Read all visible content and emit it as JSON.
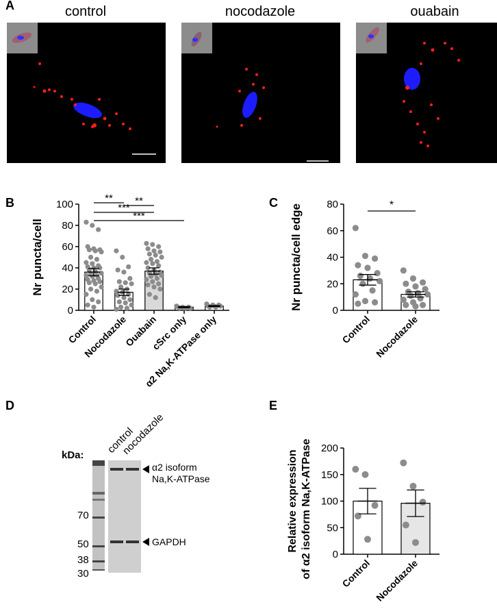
{
  "panels": {
    "A": {
      "label": "A",
      "images": [
        {
          "title": "control"
        },
        {
          "title": "nocodazole"
        },
        {
          "title": "ouabain"
        }
      ]
    },
    "B": {
      "label": "B"
    },
    "C": {
      "label": "C"
    },
    "D": {
      "label": "D",
      "kda_label": "kDa:",
      "lanes": [
        "control",
        "nocodazole"
      ],
      "markers": [
        "70",
        "50",
        "38",
        "30"
      ],
      "band_labels": [
        "α2 isoform",
        "Na,K-ATPase",
        "GAPDH"
      ]
    },
    "E": {
      "label": "E"
    }
  },
  "chart_data": [
    {
      "panel": "B",
      "type": "bar",
      "ylabel": "Nr puncta/cell",
      "ylim": [
        0,
        100
      ],
      "yticks": [
        0,
        20,
        40,
        60,
        80,
        100
      ],
      "categories": [
        "Control",
        "Nocodazole",
        "Ouabain",
        "cSrc only",
        "α2 Na,K-ATPase only"
      ],
      "values": [
        36,
        17,
        37,
        3,
        4
      ],
      "sem": [
        3.5,
        3,
        3,
        0.5,
        0.5
      ],
      "bar_colors": [
        "#ffffff",
        "#ffffff",
        "#d9d9d9",
        "#ffffff",
        "#ffffff"
      ],
      "points": [
        [
          83,
          80,
          76,
          60,
          58,
          57,
          57,
          56,
          55,
          50,
          48,
          45,
          44,
          42,
          41,
          40,
          40,
          38,
          37,
          35,
          34,
          33,
          33,
          32,
          30,
          29,
          28,
          27,
          26,
          25,
          22,
          20,
          18,
          15,
          10,
          8,
          5,
          3
        ],
        [
          56,
          50,
          41,
          38,
          36,
          30,
          27,
          26,
          25,
          22,
          20,
          18,
          17,
          15,
          14,
          12,
          10,
          8,
          7,
          5,
          3,
          2,
          1
        ],
        [
          63,
          62,
          60,
          58,
          56,
          55,
          53,
          52,
          50,
          48,
          46,
          45,
          44,
          42,
          40,
          38,
          36,
          35,
          34,
          33,
          32,
          30,
          29,
          27,
          25,
          24,
          22,
          20,
          15,
          12
        ],
        [
          4,
          3,
          3,
          3,
          2,
          2,
          2,
          2
        ],
        [
          6,
          5,
          5,
          4,
          4,
          4,
          3,
          3
        ]
      ],
      "significance": [
        {
          "label": "**"
        },
        {
          "label": "**"
        },
        {
          "label": "***"
        },
        {
          "label": "***"
        }
      ]
    },
    {
      "panel": "C",
      "type": "bar",
      "ylabel": "Nr puncta/cell edge",
      "ylim": [
        0,
        80
      ],
      "yticks": [
        0,
        20,
        40,
        60,
        80
      ],
      "categories": [
        "Control",
        "Nocodazole"
      ],
      "values": [
        23,
        12
      ],
      "sem": [
        4,
        2
      ],
      "points": [
        [
          62,
          41,
          39,
          34,
          32,
          28,
          26,
          24,
          22,
          20,
          15,
          12,
          7,
          6,
          5
        ],
        [
          30,
          24,
          21,
          20,
          18,
          16,
          14,
          13,
          12,
          11,
          9,
          8,
          6,
          4,
          4,
          3
        ]
      ],
      "significance": [
        {
          "label": "*"
        }
      ]
    },
    {
      "panel": "E",
      "type": "bar",
      "ylabel": [
        "Relative expression",
        "of α2 isoform Na,K-ATPase, %"
      ],
      "ylim": [
        0,
        200
      ],
      "yticks": [
        0,
        50,
        100,
        150,
        200
      ],
      "categories": [
        "Control",
        "Nocodazole"
      ],
      "values": [
        100,
        96
      ],
      "sem": [
        24,
        25
      ],
      "bar_colors": [
        "#ffffff",
        "#e6e6e6"
      ],
      "points": [
        [
          160,
          150,
          92,
          72,
          28
        ],
        [
          172,
          128,
          98,
          55,
          22
        ]
      ]
    }
  ]
}
